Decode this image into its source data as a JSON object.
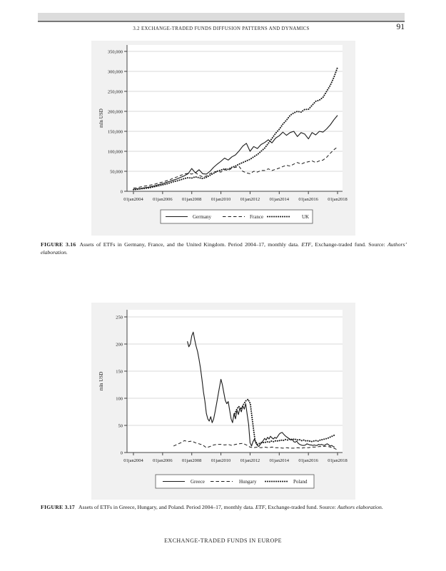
{
  "page": {
    "header_section": "3.2 EXCHANGE-TRADED FUNDS DIFFUSION PATTERNS AND DYNAMICS",
    "page_number": "91",
    "footer": "EXCHANGE-TRADED FUNDS IN EUROPE"
  },
  "figure1_caption": {
    "label": "FIGURE 3.16",
    "body": "Assets of ETFs in Germany, France, and the United Kingdom. Period 2004–17, monthly data. ",
    "term": "ETF",
    "body2": ", Exchange-traded fund. Source: ",
    "source": "Authors’ elaboration."
  },
  "figure2_caption": {
    "label": "FIGURE 3.17",
    "body": "Assets of ETFs in Greece, Hungary, and Poland. Period 2004–17, monthly data. ",
    "term": "ETF",
    "body2": ", Exchange-traded fund. Source: ",
    "source": "Authors elaboration."
  },
  "chart_data": [
    {
      "type": "line",
      "title": "",
      "xlabel": "",
      "ylabel": "mln USD",
      "ylim": [
        0,
        350000
      ],
      "xlim": [
        2003.6,
        2018.3
      ],
      "grid": true,
      "legend_position": "bottom",
      "yticks": [
        {
          "v": 0,
          "label": "0"
        },
        {
          "v": 50000,
          "label": "50,000"
        },
        {
          "v": 100000,
          "label": "100,000"
        },
        {
          "v": 150000,
          "label": "150,000"
        },
        {
          "v": 200000,
          "label": "200,000"
        },
        {
          "v": 250000,
          "label": "250,000"
        },
        {
          "v": 300000,
          "label": "300,000"
        },
        {
          "v": 350000,
          "label": "350,000"
        }
      ],
      "xticks": [
        {
          "v": 2004,
          "label": "01jan2004"
        },
        {
          "v": 2006,
          "label": "01jan2006"
        },
        {
          "v": 2008,
          "label": "01jan2008"
        },
        {
          "v": 2010,
          "label": "01jan2010"
        },
        {
          "v": 2012,
          "label": "01jan2012"
        },
        {
          "v": 2014,
          "label": "01jan2014"
        },
        {
          "v": 2016,
          "label": "01jan2016"
        },
        {
          "v": 2018,
          "label": "01jan2018"
        }
      ],
      "series": [
        {
          "name": "Germany",
          "style": "solid",
          "x_start": 2004,
          "x_step": 0.25,
          "values": [
            5000,
            6000,
            7000,
            9000,
            10000,
            12000,
            14000,
            17000,
            19000,
            22000,
            25000,
            28000,
            31000,
            35000,
            39000,
            44000,
            57000,
            46000,
            54000,
            44000,
            43000,
            50000,
            60000,
            68000,
            75000,
            83000,
            78000,
            86000,
            91000,
            101000,
            113000,
            120000,
            100000,
            112000,
            107000,
            117000,
            122000,
            129000,
            121000,
            133000,
            139000,
            148000,
            140000,
            147000,
            150000,
            137000,
            147000,
            143000,
            131000,
            147000,
            141000,
            150000,
            148000,
            156000,
            166000,
            179000,
            190000
          ]
        },
        {
          "name": "France",
          "style": "dashed",
          "x_start": 2004,
          "x_step": 0.25,
          "values": [
            8000,
            9000,
            11000,
            13000,
            14000,
            16000,
            18000,
            21000,
            23000,
            26000,
            29000,
            33000,
            36000,
            40000,
            43000,
            45000,
            43000,
            47000,
            40000,
            36000,
            38000,
            44000,
            48000,
            50000,
            48000,
            54000,
            52000,
            58000,
            60000,
            62000,
            50000,
            46000,
            44000,
            50000,
            48000,
            52000,
            52000,
            56000,
            52000,
            55000,
            58000,
            62000,
            65000,
            63000,
            68000,
            72000,
            68000,
            72000,
            74000,
            76000,
            72000,
            76000,
            78000,
            85000,
            95000,
            104000,
            111000
          ]
        },
        {
          "name": "UK",
          "style": "dotted",
          "x_start": 2004,
          "x_step": 0.25,
          "values": [
            4000,
            5000,
            6000,
            7000,
            8000,
            10000,
            12000,
            14000,
            16000,
            18000,
            21000,
            24000,
            26000,
            29000,
            32000,
            34000,
            33000,
            36000,
            34000,
            32000,
            35000,
            40000,
            45000,
            50000,
            53000,
            56000,
            55000,
            60000,
            63000,
            68000,
            72000,
            76000,
            80000,
            86000,
            92000,
            100000,
            108000,
            120000,
            132000,
            145000,
            155000,
            168000,
            178000,
            190000,
            196000,
            200000,
            198000,
            205000,
            205000,
            215000,
            225000,
            228000,
            235000,
            250000,
            265000,
            285000,
            310000
          ]
        }
      ]
    },
    {
      "type": "line",
      "title": "",
      "xlabel": "",
      "ylabel": "mln USD",
      "ylim": [
        0,
        250
      ],
      "xlim": [
        2003.6,
        2018.3
      ],
      "grid": true,
      "legend_position": "bottom",
      "yticks": [
        {
          "v": 0,
          "label": "0"
        },
        {
          "v": 50,
          "label": "50"
        },
        {
          "v": 100,
          "label": "100"
        },
        {
          "v": 150,
          "label": "150"
        },
        {
          "v": 200,
          "label": "200"
        },
        {
          "v": 250,
          "label": "250"
        }
      ],
      "xticks": [
        {
          "v": 2004,
          "label": "01jan2004"
        },
        {
          "v": 2006,
          "label": "01jan2006"
        },
        {
          "v": 2008,
          "label": "01jan2008"
        },
        {
          "v": 2010,
          "label": "01jan2010"
        },
        {
          "v": 2012,
          "label": "01jan2012"
        },
        {
          "v": 2014,
          "label": "01jan2014"
        },
        {
          "v": 2016,
          "label": "01jan2016"
        },
        {
          "v": 2018,
          "label": "01jan2018"
        }
      ],
      "series": [
        {
          "name": "Greece",
          "style": "solid",
          "x_start": 2007.7,
          "x_step": 0.1,
          "values": [
            205,
            195,
            200,
            215,
            222,
            208,
            196,
            186,
            172,
            155,
            135,
            112,
            95,
            72,
            62,
            58,
            66,
            55,
            62,
            75,
            90,
            105,
            120,
            135,
            125,
            110,
            96,
            90,
            94,
            78,
            62,
            55,
            72,
            62,
            78,
            70,
            82,
            75,
            86,
            80,
            90,
            70,
            52,
            18,
            12,
            20,
            25,
            17,
            13,
            11,
            15,
            18,
            22,
            26,
            23,
            28,
            25,
            30,
            27,
            25,
            28,
            26,
            30,
            34,
            36,
            37,
            34,
            31,
            29,
            27,
            25,
            23,
            24,
            20,
            19,
            21,
            17,
            15,
            14,
            13,
            13,
            14,
            16,
            15,
            14,
            14,
            13,
            14,
            13,
            13,
            15,
            14,
            15,
            14,
            13,
            15,
            16,
            14,
            12,
            13,
            11,
            10
          ]
        },
        {
          "name": "Hungary",
          "style": "dashed",
          "x_start": 2006.75,
          "x_step": 0.25,
          "values": [
            12,
            15,
            18,
            22,
            20,
            21,
            18,
            16,
            14,
            9,
            11,
            14,
            15,
            15,
            14,
            15,
            13,
            15,
            16,
            17,
            14,
            10,
            9,
            10,
            9,
            10,
            9,
            10,
            9,
            9,
            8,
            9,
            8,
            8,
            9,
            8,
            9,
            9,
            10,
            10,
            11,
            11,
            12,
            10,
            8,
            5
          ]
        },
        {
          "name": "Poland",
          "style": "dotted",
          "x_start": 2010.9,
          "x_step": 0.16,
          "values": [
            68,
            78,
            85,
            80,
            88,
            95,
            98,
            90,
            55,
            22,
            15,
            17,
            19,
            18,
            20,
            19,
            21,
            20,
            22,
            21,
            23,
            22,
            24,
            23,
            25,
            24,
            25,
            23,
            24,
            22,
            23,
            21,
            22,
            20,
            21,
            22,
            21,
            23,
            24,
            25,
            26,
            28,
            30,
            32
          ]
        }
      ]
    }
  ]
}
